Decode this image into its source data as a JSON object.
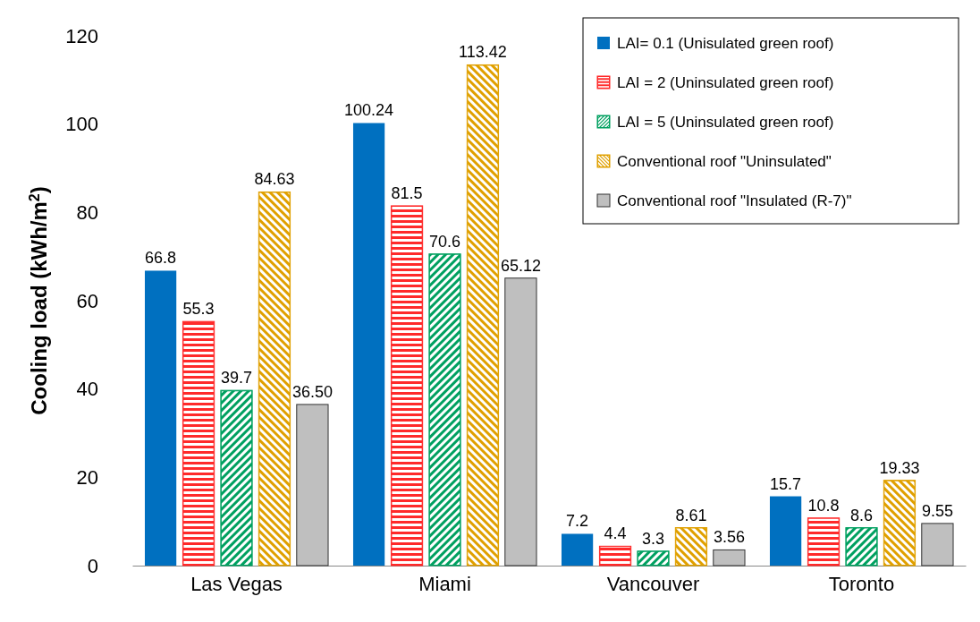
{
  "chart_data": {
    "type": "bar",
    "ylabel": "Cooling load (kWh/m$^{2}$)",
    "categories": [
      "Las Vegas",
      "Miami",
      "Vancouver",
      "Toronto"
    ],
    "ylim": [
      0,
      120
    ],
    "yticks": [
      0,
      20,
      40,
      60,
      80,
      100,
      120
    ],
    "grid": false,
    "legend": "top right",
    "series": [
      {
        "name": "LAI= 0.1 (Unisulated green roof)",
        "color": "#0070c0",
        "values": [
          66.8,
          100.24,
          7.2,
          15.7
        ],
        "value_labels": [
          "66.8",
          "100.24",
          "7.2",
          "15.7"
        ]
      },
      {
        "name": "LAI = 2 (Uninsulated green roof)",
        "color": "#ff2a2a",
        "values": [
          55.3,
          81.5,
          4.4,
          10.8
        ],
        "value_labels": [
          "55.3",
          "81.5",
          "4.4",
          "10.8"
        ]
      },
      {
        "name": "LAI = 5 (Uninsulated green roof)",
        "color": "#00a060",
        "values": [
          39.7,
          70.6,
          3.3,
          8.6
        ],
        "value_labels": [
          "39.7",
          "70.6",
          "3.3",
          "8.6"
        ]
      },
      {
        "name": "Conventional roof \"Uninsulated\"",
        "color": "#e0a000",
        "values": [
          84.63,
          113.42,
          8.61,
          19.33
        ],
        "value_labels": [
          "84.63",
          "113.42",
          "8.61",
          "19.33"
        ]
      },
      {
        "name": "Conventional roof \"Insulated (R-7)\"",
        "color": "#bfbfbf",
        "values": [
          36.5,
          65.12,
          3.56,
          9.55
        ],
        "value_labels": [
          "36.50",
          "65.12",
          "3.56",
          "9.55"
        ]
      }
    ]
  }
}
